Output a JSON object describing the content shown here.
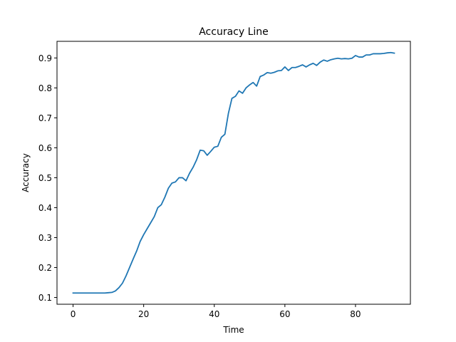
{
  "chart_data": {
    "type": "line",
    "title": "Accuracy Line",
    "xlabel": "Time",
    "ylabel": "Accuracy",
    "xlim": [
      -4.55,
      95.55
    ],
    "ylim": [
      0.0775,
      0.9555
    ],
    "xticks": [
      0,
      20,
      40,
      60,
      80
    ],
    "yticks": [
      0.1,
      0.2,
      0.3,
      0.4,
      0.5,
      0.6,
      0.7,
      0.8,
      0.9
    ],
    "xtick_labels": [
      "0",
      "20",
      "40",
      "60",
      "80"
    ],
    "ytick_labels": [
      "0.1",
      "0.2",
      "0.3",
      "0.4",
      "0.5",
      "0.6",
      "0.7",
      "0.8",
      "0.9"
    ],
    "grid": false,
    "legend": "none",
    "series": [
      {
        "color": "#1f77b4",
        "x": [
          0,
          1,
          2,
          3,
          4,
          5,
          6,
          7,
          8,
          9,
          10,
          11,
          12,
          13,
          14,
          15,
          16,
          17,
          18,
          19,
          20,
          21,
          22,
          23,
          24,
          25,
          26,
          27,
          28,
          29,
          30,
          31,
          32,
          33,
          34,
          35,
          36,
          37,
          38,
          39,
          40,
          41,
          42,
          43,
          44,
          45,
          46,
          47,
          48,
          49,
          50,
          51,
          52,
          53,
          54,
          55,
          56,
          57,
          58,
          59,
          60,
          61,
          62,
          63,
          64,
          65,
          66,
          67,
          68,
          69,
          70,
          71,
          72,
          73,
          74,
          75,
          76,
          77,
          78,
          79,
          80,
          81,
          82,
          83,
          84,
          85,
          86,
          87,
          88,
          89,
          90,
          91
        ],
        "values": [
          0.115,
          0.115,
          0.115,
          0.115,
          0.115,
          0.115,
          0.115,
          0.115,
          0.115,
          0.115,
          0.116,
          0.117,
          0.122,
          0.133,
          0.148,
          0.172,
          0.2,
          0.228,
          0.255,
          0.287,
          0.31,
          0.33,
          0.35,
          0.37,
          0.4,
          0.41,
          0.435,
          0.465,
          0.482,
          0.486,
          0.5,
          0.5,
          0.49,
          0.515,
          0.535,
          0.56,
          0.592,
          0.59,
          0.575,
          0.588,
          0.602,
          0.605,
          0.635,
          0.645,
          0.715,
          0.765,
          0.772,
          0.79,
          0.782,
          0.8,
          0.81,
          0.818,
          0.806,
          0.838,
          0.843,
          0.851,
          0.849,
          0.852,
          0.857,
          0.858,
          0.87,
          0.858,
          0.868,
          0.868,
          0.872,
          0.877,
          0.87,
          0.877,
          0.882,
          0.875,
          0.886,
          0.893,
          0.889,
          0.894,
          0.897,
          0.899,
          0.897,
          0.898,
          0.897,
          0.899,
          0.908,
          0.903,
          0.903,
          0.91,
          0.91,
          0.914,
          0.914,
          0.914,
          0.915,
          0.917,
          0.918,
          0.916
        ]
      }
    ]
  }
}
